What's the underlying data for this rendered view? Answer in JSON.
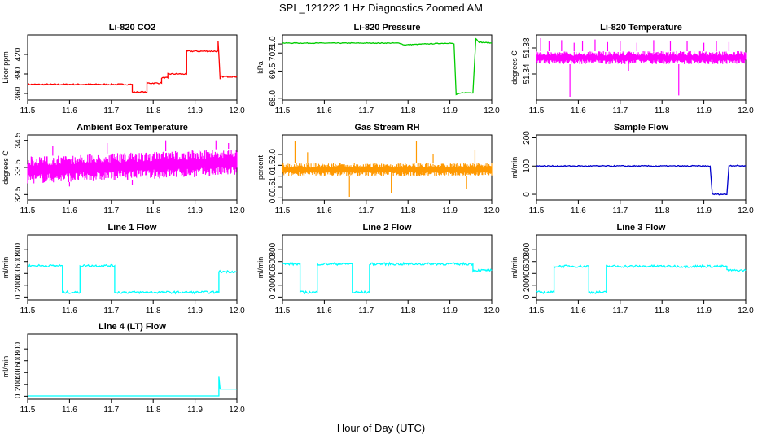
{
  "figure": {
    "title": "SPL_121222  1 Hz Diagnostics Zoomed AM",
    "xlabel": "Hour of Day (UTC)"
  },
  "chart_data": [
    {
      "type": "line",
      "title": "Li-820 CO2",
      "ylabel": "Licor ppm",
      "color": "#ff0000",
      "xlim": [
        11.5,
        12.0
      ],
      "ylim": [
        350,
        450
      ],
      "xticks": [
        "11.5",
        "11.6",
        "11.7",
        "11.8",
        "11.9",
        "12.0"
      ],
      "yticks": [
        {
          "v": 360,
          "label": "360"
        },
        {
          "v": 390,
          "label": "390"
        },
        {
          "v": 420,
          "label": "420"
        }
      ],
      "noise": 1,
      "segments": [
        [
          11.5,
          374
        ],
        [
          11.75,
          374
        ],
        [
          11.75,
          362
        ],
        [
          11.785,
          362
        ],
        [
          11.785,
          376
        ],
        [
          11.82,
          376
        ],
        [
          11.82,
          384
        ],
        [
          11.835,
          384
        ],
        [
          11.835,
          390
        ],
        [
          11.88,
          390
        ],
        [
          11.88,
          425
        ],
        [
          11.955,
          425
        ],
        [
          11.955,
          440
        ],
        [
          11.96,
          382
        ],
        [
          11.96,
          386
        ],
        [
          12.0,
          386
        ]
      ]
    },
    {
      "type": "line",
      "title": "Li-820 Pressure",
      "ylabel": "kPa",
      "color": "#00cc00",
      "xlim": [
        11.5,
        12.0
      ],
      "ylim": [
        67.9,
        71.5
      ],
      "xticks": [
        "11.5",
        "11.6",
        "11.7",
        "11.8",
        "11.9",
        "12.0"
      ],
      "yticks": [
        {
          "v": 68.0,
          "label": "68.0"
        },
        {
          "v": 69.5,
          "label": "69.5"
        },
        {
          "v": 70.5,
          "label": "70.5"
        },
        {
          "v": 71.0,
          "label": "71.0"
        }
      ],
      "noise": 0.02,
      "segments": [
        [
          11.5,
          71.05
        ],
        [
          11.78,
          71.05
        ],
        [
          11.79,
          70.95
        ],
        [
          11.84,
          71.0
        ],
        [
          11.9,
          71.05
        ],
        [
          11.91,
          71.0
        ],
        [
          11.915,
          68.2
        ],
        [
          11.93,
          68.3
        ],
        [
          11.955,
          68.3
        ],
        [
          11.962,
          71.3
        ],
        [
          11.97,
          71.1
        ],
        [
          12.0,
          71.05
        ]
      ]
    },
    {
      "type": "band",
      "title": "Li-820 Temperature",
      "ylabel": "degrees C",
      "color": "#ff00ff",
      "xlim": [
        11.5,
        12.0
      ],
      "ylim": [
        51.3,
        51.4
      ],
      "xticks": [
        "11.5",
        "11.6",
        "11.7",
        "11.8",
        "11.9",
        "12.0"
      ],
      "yticks": [
        {
          "v": 51.34,
          "label": "51.34"
        },
        {
          "v": 51.38,
          "label": "51.38"
        }
      ],
      "band": [
        51.355,
        51.375
      ],
      "spikes": [
        {
          "x": 11.51,
          "y": 51.395
        },
        {
          "x": 11.53,
          "y": 51.39
        },
        {
          "x": 11.56,
          "y": 51.392
        },
        {
          "x": 11.59,
          "y": 51.388
        },
        {
          "x": 11.61,
          "y": 51.39
        },
        {
          "x": 11.64,
          "y": 51.393
        },
        {
          "x": 11.67,
          "y": 51.389
        },
        {
          "x": 11.7,
          "y": 51.39
        },
        {
          "x": 11.74,
          "y": 51.388
        },
        {
          "x": 11.78,
          "y": 51.392
        },
        {
          "x": 11.82,
          "y": 51.39
        },
        {
          "x": 11.86,
          "y": 51.39
        },
        {
          "x": 11.9,
          "y": 51.388
        },
        {
          "x": 11.93,
          "y": 51.39
        },
        {
          "x": 11.96,
          "y": 51.389
        },
        {
          "x": 11.58,
          "y": 51.305
        },
        {
          "x": 11.84,
          "y": 51.307
        },
        {
          "x": 11.72,
          "y": 51.345
        }
      ]
    },
    {
      "type": "band",
      "title": "Ambient Box Temperature",
      "ylabel": "degrees C",
      "color": "#ff00ff",
      "xlim": [
        11.5,
        12.0
      ],
      "ylim": [
        32.3,
        34.7
      ],
      "xticks": [
        "11.5",
        "11.6",
        "11.7",
        "11.8",
        "11.9",
        "12.0"
      ],
      "yticks": [
        {
          "v": 32.5,
          "label": "32.5"
        },
        {
          "v": 33.5,
          "label": "33.5"
        },
        {
          "v": 34.5,
          "label": "34.5"
        }
      ],
      "band": [
        32.9,
        33.9
      ],
      "band_end": [
        33.2,
        34.2
      ],
      "spikes": [
        {
          "x": 11.56,
          "y": 34.3
        },
        {
          "x": 11.6,
          "y": 32.8
        },
        {
          "x": 11.69,
          "y": 34.4
        },
        {
          "x": 11.75,
          "y": 32.85
        },
        {
          "x": 11.83,
          "y": 34.5
        },
        {
          "x": 11.95,
          "y": 34.5
        },
        {
          "x": 11.98,
          "y": 34.4
        }
      ]
    },
    {
      "type": "band",
      "title": "Gas Stream RH",
      "ylabel": "percent",
      "color": "#ff9900",
      "xlim": [
        11.5,
        12.0
      ],
      "ylim": [
        -0.1,
        2.9
      ],
      "xticks": [
        "11.5",
        "11.6",
        "11.7",
        "11.8",
        "11.9",
        "12.0"
      ],
      "yticks": [
        {
          "v": 0.0,
          "label": "0.0"
        },
        {
          "v": 0.5,
          "label": "0.5"
        },
        {
          "v": 1.0,
          "label": "1.0"
        },
        {
          "v": 1.5,
          "label": "1.5"
        },
        {
          "v": 2.0,
          "label": "2.0"
        }
      ],
      "band": [
        1.0,
        1.6
      ],
      "spikes": [
        {
          "x": 11.53,
          "y": 2.6
        },
        {
          "x": 11.56,
          "y": 2.1
        },
        {
          "x": 11.66,
          "y": 0.05
        },
        {
          "x": 11.76,
          "y": 0.2
        },
        {
          "x": 11.82,
          "y": 2.6
        },
        {
          "x": 11.86,
          "y": 2.0
        },
        {
          "x": 11.96,
          "y": 2.2
        },
        {
          "x": 11.94,
          "y": 0.4
        }
      ]
    },
    {
      "type": "line",
      "title": "Sample Flow",
      "ylabel": "ml/min",
      "color": "#0000cc",
      "xlim": [
        11.5,
        12.0
      ],
      "ylim": [
        -20,
        210
      ],
      "xticks": [
        "11.5",
        "11.6",
        "11.7",
        "11.8",
        "11.9",
        "12.0"
      ],
      "yticks": [
        {
          "v": 0,
          "label": "0"
        },
        {
          "v": 100,
          "label": "100"
        },
        {
          "v": 200,
          "label": "200"
        }
      ],
      "noise": 2,
      "segments": [
        [
          11.5,
          100
        ],
        [
          11.915,
          100
        ],
        [
          11.92,
          0
        ],
        [
          11.955,
          0
        ],
        [
          11.96,
          102
        ],
        [
          12.0,
          100
        ]
      ]
    },
    {
      "type": "line",
      "title": "Line 1 Flow",
      "ylabel": "ml/min",
      "color": "#00ffff",
      "xlim": [
        11.5,
        12.0
      ],
      "ylim": [
        -50,
        1050
      ],
      "xticks": [
        "11.5",
        "11.6",
        "11.7",
        "11.8",
        "11.9",
        "12.0"
      ],
      "yticks": [
        {
          "v": 0,
          "label": "0"
        },
        {
          "v": 200,
          "label": "200"
        },
        {
          "v": 400,
          "label": "400"
        },
        {
          "v": 600,
          "label": "600"
        },
        {
          "v": 800,
          "label": "800"
        }
      ],
      "noise": 20,
      "segments": [
        [
          11.5,
          530
        ],
        [
          11.583,
          530
        ],
        [
          11.583,
          80
        ],
        [
          11.625,
          80
        ],
        [
          11.625,
          530
        ],
        [
          11.708,
          530
        ],
        [
          11.708,
          80
        ],
        [
          11.957,
          80
        ],
        [
          11.957,
          430
        ],
        [
          12.0,
          430
        ]
      ]
    },
    {
      "type": "line",
      "title": "Line 2 Flow",
      "ylabel": "ml/min",
      "color": "#00ffff",
      "xlim": [
        11.5,
        12.0
      ],
      "ylim": [
        -50,
        1050
      ],
      "xticks": [
        "11.5",
        "11.6",
        "11.7",
        "11.8",
        "11.9",
        "12.0"
      ],
      "yticks": [
        {
          "v": 0,
          "label": "0"
        },
        {
          "v": 200,
          "label": "200"
        },
        {
          "v": 400,
          "label": "400"
        },
        {
          "v": 600,
          "label": "600"
        },
        {
          "v": 800,
          "label": "800"
        }
      ],
      "noise": 20,
      "segments": [
        [
          11.5,
          560
        ],
        [
          11.542,
          560
        ],
        [
          11.542,
          80
        ],
        [
          11.583,
          80
        ],
        [
          11.583,
          560
        ],
        [
          11.667,
          560
        ],
        [
          11.667,
          80
        ],
        [
          11.708,
          80
        ],
        [
          11.708,
          560
        ],
        [
          11.955,
          560
        ],
        [
          11.955,
          450
        ],
        [
          12.0,
          450
        ]
      ]
    },
    {
      "type": "line",
      "title": "Line 3 Flow",
      "ylabel": "ml/min",
      "color": "#00ffff",
      "xlim": [
        11.5,
        12.0
      ],
      "ylim": [
        -50,
        1050
      ],
      "xticks": [
        "11.5",
        "11.6",
        "11.7",
        "11.8",
        "11.9",
        "12.0"
      ],
      "yticks": [
        {
          "v": 0,
          "label": "0"
        },
        {
          "v": 200,
          "label": "200"
        },
        {
          "v": 400,
          "label": "400"
        },
        {
          "v": 600,
          "label": "600"
        },
        {
          "v": 800,
          "label": "800"
        }
      ],
      "noise": 20,
      "segments": [
        [
          11.5,
          80
        ],
        [
          11.542,
          80
        ],
        [
          11.542,
          520
        ],
        [
          11.625,
          520
        ],
        [
          11.625,
          80
        ],
        [
          11.667,
          80
        ],
        [
          11.667,
          520
        ],
        [
          11.955,
          520
        ],
        [
          11.955,
          450
        ],
        [
          12.0,
          450
        ]
      ]
    },
    {
      "type": "line",
      "title": "Line 4 (LT) Flow",
      "ylabel": "ml/min",
      "color": "#00ffff",
      "xlim": [
        11.5,
        12.0
      ],
      "ylim": [
        -50,
        1050
      ],
      "xticks": [
        "11.5",
        "11.6",
        "11.7",
        "11.8",
        "11.9",
        "12.0"
      ],
      "yticks": [
        {
          "v": 0,
          "label": "0"
        },
        {
          "v": 200,
          "label": "200"
        },
        {
          "v": 400,
          "label": "400"
        },
        {
          "v": 600,
          "label": "600"
        },
        {
          "v": 800,
          "label": "800"
        }
      ],
      "noise": 0,
      "segments": [
        [
          11.5,
          5
        ],
        [
          11.957,
          5
        ],
        [
          11.957,
          330
        ],
        [
          11.96,
          120
        ],
        [
          12.0,
          120
        ]
      ]
    }
  ]
}
